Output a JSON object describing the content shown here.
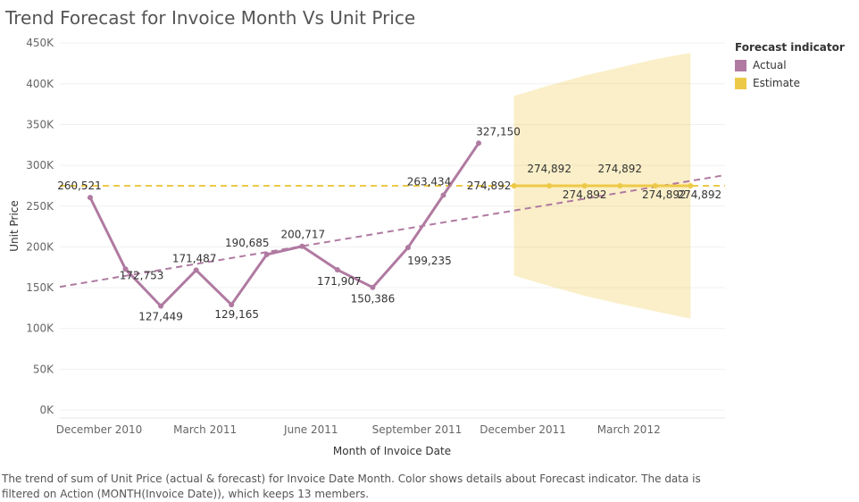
{
  "title": "Trend Forecast for Invoice Month Vs Unit Price",
  "caption": "The trend of sum of Unit Price (actual & forecast)  for Invoice Date Month.  Color shows details about Forecast indicator. The data is filtered on Action (MONTH(Invoice Date)), which keeps 13 members.",
  "legend": {
    "title": "Forecast indicator",
    "items": [
      {
        "label": "Actual",
        "color": "#b07aa1"
      },
      {
        "label": "Estimate",
        "color": "#edc948"
      }
    ]
  },
  "chart_data": {
    "type": "line",
    "xlabel": "Month of Invoice Date",
    "ylabel": "Unit Price",
    "x_ticks": [
      "December 2010",
      "March 2011",
      "June 2011",
      "September 2011",
      "December 2011",
      "March 2012"
    ],
    "y_ticks": [
      "450K",
      "400K",
      "350K",
      "300K",
      "250K",
      "200K",
      "150K",
      "100K",
      "50K",
      "0K"
    ],
    "ylim": [
      0,
      450000
    ],
    "series": [
      {
        "name": "Actual",
        "color": "#b07aa1",
        "x": [
          "2010-12",
          "2011-01",
          "2011-02",
          "2011-03",
          "2011-04",
          "2011-05",
          "2011-06",
          "2011-07",
          "2011-08",
          "2011-09",
          "2011-10",
          "2011-11"
        ],
        "values": [
          260521,
          172753,
          127449,
          171487,
          129165,
          190685,
          200717,
          171907,
          150386,
          199235,
          263434,
          327150
        ],
        "labels": [
          "260,521",
          "172,753",
          "127,449",
          "171,487",
          "129,165",
          "190,685",
          "200,717",
          "171,907",
          "150,386",
          "199,235",
          "263,434",
          "327,150"
        ]
      },
      {
        "name": "Estimate",
        "color": "#edc948",
        "x": [
          "2011-12",
          "2012-01",
          "2012-02",
          "2012-03",
          "2012-04",
          "2012-05"
        ],
        "values": [
          274892,
          274892,
          274892,
          274892,
          274892,
          274892
        ],
        "labels": [
          "274,892",
          "274,892",
          "274,892",
          "274,892",
          "274,892",
          "274,892"
        ],
        "band_upper": [
          385000,
          398000,
          410000,
          420000,
          430000,
          438000
        ],
        "band_lower": [
          165000,
          152000,
          140000,
          130000,
          121000,
          112000
        ]
      }
    ],
    "reference_lines": [
      {
        "type": "average",
        "value": 274892,
        "color": "#edc948",
        "style": "dashed"
      },
      {
        "type": "trend",
        "start": [
          "2010-11",
          151000
        ],
        "end": [
          "2012-06",
          288000
        ],
        "color": "#b07aa1",
        "style": "dashed"
      }
    ],
    "grid": true,
    "legend_position": "right"
  }
}
